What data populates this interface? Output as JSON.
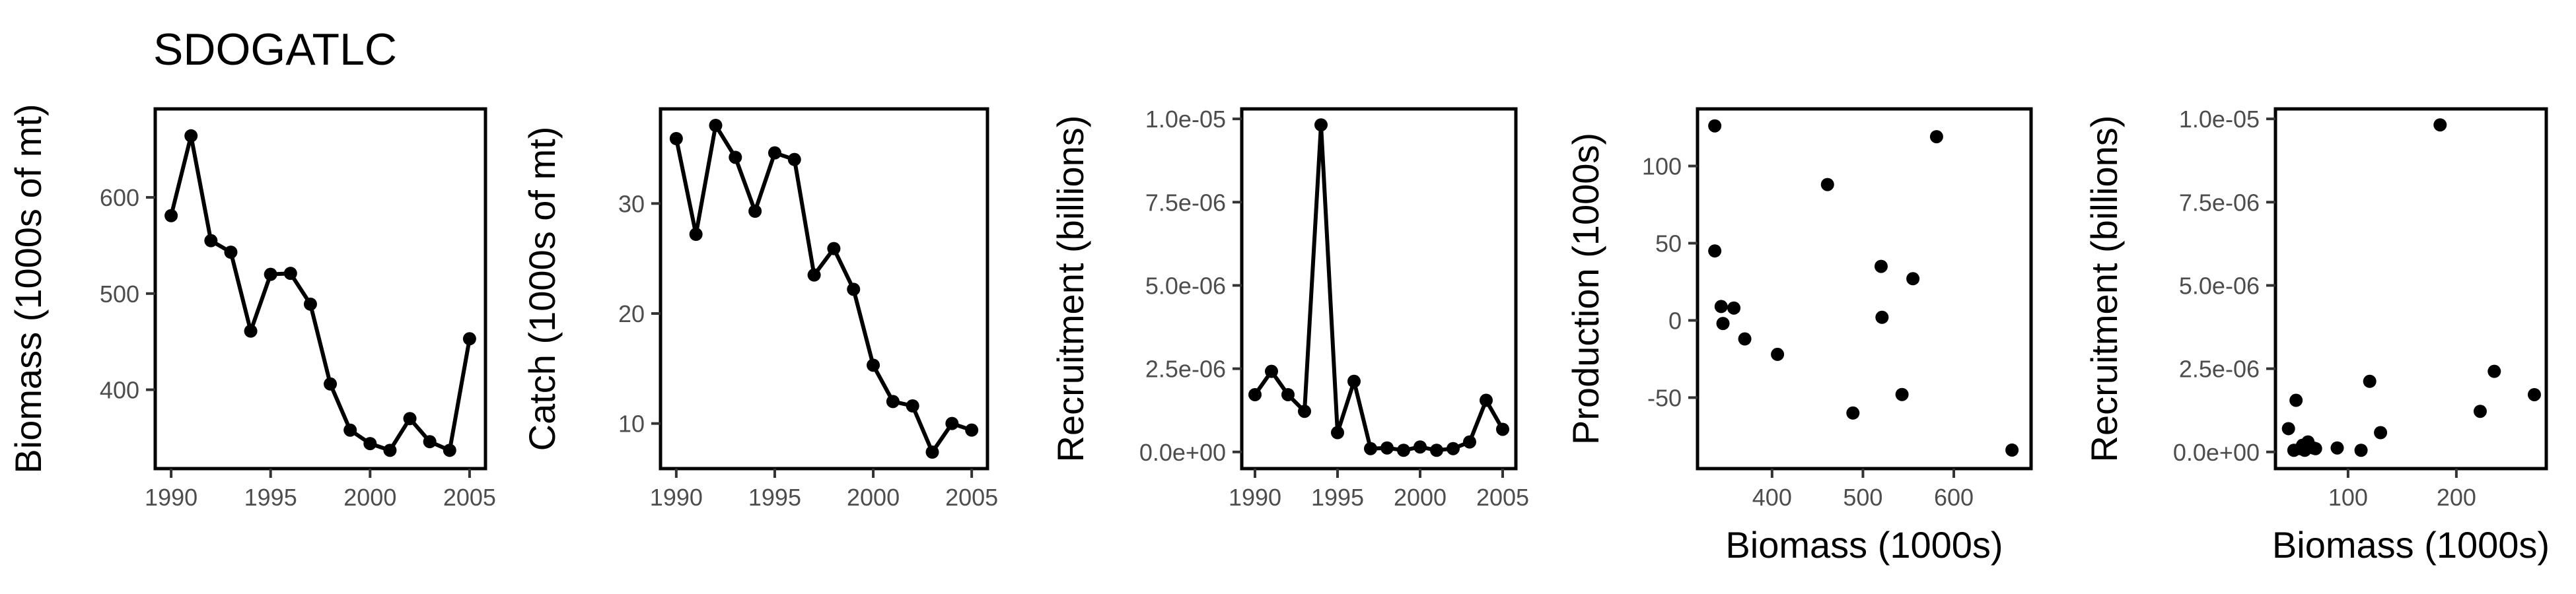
{
  "title": "SDOGATLC",
  "chart_data": [
    {
      "type": "line",
      "ylabel": "Biomass (1000s of mt)",
      "xlabel": "",
      "xlim": [
        1989.2,
        2005.8
      ],
      "ylim": [
        318,
        692
      ],
      "xticks": [
        1990,
        1995,
        2000,
        2005
      ],
      "yticks": [
        400,
        500,
        600
      ],
      "ytick_labels": [
        "400",
        "500",
        "600"
      ],
      "x": [
        1990,
        1991,
        1992,
        1993,
        1994,
        1995,
        1996,
        1997,
        1998,
        1999,
        2000,
        2001,
        2002,
        2003,
        2004,
        2005
      ],
      "y": [
        581,
        664,
        555,
        543,
        461,
        520,
        521,
        489,
        406,
        358,
        344,
        337,
        370,
        346,
        337,
        453
      ]
    },
    {
      "type": "line",
      "ylabel": "Catch (1000s of mt)",
      "xlabel": "",
      "xlim": [
        1989.2,
        2005.8
      ],
      "ylim": [
        5.9,
        38.6
      ],
      "xticks": [
        1990,
        1995,
        2000,
        2005
      ],
      "yticks": [
        10,
        20,
        30
      ],
      "ytick_labels": [
        "10",
        "20",
        "30"
      ],
      "x": [
        1990,
        1991,
        1992,
        1993,
        1994,
        1995,
        1996,
        1997,
        1998,
        1999,
        2000,
        2001,
        2002,
        2003,
        2004,
        2005
      ],
      "y": [
        35.9,
        27.2,
        37.1,
        34.2,
        29.3,
        34.6,
        34.0,
        23.5,
        25.9,
        22.2,
        15.3,
        12.0,
        11.6,
        7.4,
        10.0,
        9.4
      ]
    },
    {
      "type": "line",
      "ylabel": "Recruitment (billions)",
      "xlabel": "",
      "xlim": [
        1989.2,
        2005.8
      ],
      "ylim": [
        -5e-07,
        1.03e-05
      ],
      "xticks": [
        1990,
        1995,
        2000,
        2005
      ],
      "yticks": [
        0,
        2.5e-06,
        5e-06,
        7.5e-06,
        1e-05
      ],
      "ytick_labels": [
        "0.0e+00",
        "2.5e-06",
        "5.0e-06",
        "7.5e-06",
        "1.0e-05"
      ],
      "x": [
        1990,
        1991,
        1992,
        1993,
        1994,
        1995,
        1996,
        1997,
        1998,
        1999,
        2000,
        2001,
        2002,
        2003,
        2004,
        2005
      ],
      "y": [
        1.72e-06,
        2.42e-06,
        1.72e-06,
        1.22e-06,
        9.82e-06,
        5.8e-07,
        2.12e-06,
        1e-07,
        1.2e-07,
        5e-08,
        1.5e-07,
        5e-08,
        1e-07,
        3e-07,
        1.55e-06,
        6.8e-07
      ]
    },
    {
      "type": "scatter",
      "ylabel": "Production (1000s)",
      "xlabel": "Biomass (1000s)",
      "xlim": [
        318,
        685
      ],
      "ylim": [
        -96,
        137
      ],
      "xticks": [
        400,
        500,
        600
      ],
      "xtick_labels": [
        "400",
        "500",
        "600"
      ],
      "yticks": [
        -50,
        0,
        50,
        100
      ],
      "ytick_labels": [
        "-50",
        "0",
        "50",
        "100"
      ],
      "x": [
        337,
        337,
        344,
        346,
        358,
        370,
        406,
        461,
        489,
        520,
        521,
        543,
        555,
        581,
        664
      ],
      "y": [
        126,
        45,
        9,
        -2,
        8,
        -12,
        -22,
        88,
        -60,
        35,
        2,
        -48,
        27,
        119,
        -84
      ]
    },
    {
      "type": "scatter",
      "ylabel": "Recruitment (billions)",
      "xlabel": "Biomass (1000s)",
      "xlim": [
        33,
        283
      ],
      "ylim": [
        -5e-07,
        1.03e-05
      ],
      "xticks": [
        100,
        200
      ],
      "xtick_labels": [
        "100",
        "200"
      ],
      "yticks": [
        0,
        2.5e-06,
        5e-06,
        7.5e-06,
        1e-05
      ],
      "ytick_labels": [
        "0.0e+00",
        "2.5e-06",
        "5.0e-06",
        "7.5e-06",
        "1.0e-05"
      ],
      "x": [
        45,
        50,
        52,
        56,
        58,
        60,
        63,
        68,
        70,
        90,
        112,
        120,
        130,
        185,
        222,
        235,
        272
      ],
      "y": [
        7e-07,
        5e-08,
        1.55e-06,
        1e-07,
        2e-07,
        5e-08,
        3e-07,
        1.2e-07,
        1e-07,
        1.2e-07,
        5e-08,
        2.12e-06,
        5.8e-07,
        9.82e-06,
        1.22e-06,
        2.42e-06,
        1.72e-06
      ]
    }
  ]
}
